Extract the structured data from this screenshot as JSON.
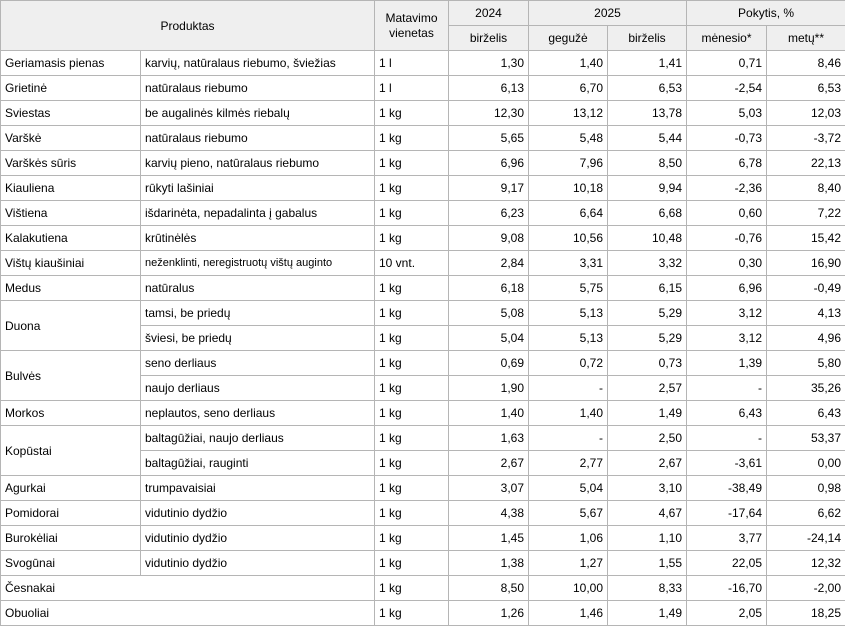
{
  "header": {
    "product": "Produktas",
    "unit": "Matavimo vienetas",
    "year_2024": "2024",
    "year_2025": "2025",
    "change": "Pokytis, %",
    "june_2024": "birželis",
    "may_2025": "gegužė",
    "june_2025": "birželis",
    "month_change": "mėnesio*",
    "year_change": "metų**"
  },
  "rows": [
    {
      "name": "Geriamasis pienas",
      "desc": "karvių, natūralaus riebumo, šviežias",
      "unit": "1 l",
      "p2024": "1,30",
      "may": "1,40",
      "jun": "1,41",
      "m": "0,71",
      "y": "8,46"
    },
    {
      "name": "Grietinė",
      "desc": "natūralaus riebumo",
      "unit": "1 l",
      "p2024": "6,13",
      "may": "6,70",
      "jun": "6,53",
      "m": "-2,54",
      "y": "6,53"
    },
    {
      "name": "Sviestas",
      "desc": "be augalinės kilmės riebalų",
      "unit": "1 kg",
      "p2024": "12,30",
      "may": "13,12",
      "jun": "13,78",
      "m": "5,03",
      "y": "12,03"
    },
    {
      "name": "Varškė",
      "desc": "natūralaus riebumo",
      "unit": "1 kg",
      "p2024": "5,65",
      "may": "5,48",
      "jun": "5,44",
      "m": "-0,73",
      "y": "-3,72"
    },
    {
      "name": "Varškės sūris",
      "desc": "karvių pieno, natūralaus riebumo",
      "unit": "1 kg",
      "p2024": "6,96",
      "may": "7,96",
      "jun": "8,50",
      "m": "6,78",
      "y": "22,13"
    },
    {
      "name": "Kiauliena",
      "desc": "rūkyti lašiniai",
      "unit": "1 kg",
      "p2024": "9,17",
      "may": "10,18",
      "jun": "9,94",
      "m": "-2,36",
      "y": "8,40"
    },
    {
      "name": "Vištiena",
      "desc": "išdarinėta, nepadalinta į gabalus",
      "unit": "1 kg",
      "p2024": "6,23",
      "may": "6,64",
      "jun": "6,68",
      "m": "0,60",
      "y": "7,22"
    },
    {
      "name": "Kalakutiena",
      "desc": "krūtinėlės",
      "unit": "1 kg",
      "p2024": "9,08",
      "may": "10,56",
      "jun": "10,48",
      "m": "-0,76",
      "y": "15,42"
    },
    {
      "name": "Vištų kiaušiniai",
      "desc": "neženklinti, neregistruotų vištų auginto",
      "unit": "10 vnt.",
      "p2024": "2,84",
      "may": "3,31",
      "jun": "3,32",
      "m": "0,30",
      "y": "16,90"
    },
    {
      "name": "Medus",
      "desc": "natūralus",
      "unit": "1 kg",
      "p2024": "6,18",
      "may": "5,75",
      "jun": "6,15",
      "m": "6,96",
      "y": "-0,49"
    },
    {
      "name": "Duona",
      "desc": "tamsi, be priedų",
      "unit": "1 kg",
      "p2024": "5,08",
      "may": "5,13",
      "jun": "5,29",
      "m": "3,12",
      "y": "4,13"
    },
    {
      "name": "",
      "desc": "šviesi, be priedų",
      "unit": "1 kg",
      "p2024": "5,04",
      "may": "5,13",
      "jun": "5,29",
      "m": "3,12",
      "y": "4,96"
    },
    {
      "name": "Bulvės",
      "desc": "seno derliaus",
      "unit": "1 kg",
      "p2024": "0,69",
      "may": "0,72",
      "jun": "0,73",
      "m": "1,39",
      "y": "5,80"
    },
    {
      "name": "",
      "desc": "naujo derliaus",
      "unit": "1 kg",
      "p2024": "1,90",
      "may": "-",
      "jun": "2,57",
      "m": "-",
      "y": "35,26"
    },
    {
      "name": "Morkos",
      "desc": "neplautos, seno derliaus",
      "unit": "1 kg",
      "p2024": "1,40",
      "may": "1,40",
      "jun": "1,49",
      "m": "6,43",
      "y": "6,43"
    },
    {
      "name": "Kopūstai",
      "desc": "baltagūžiai, naujo derliaus",
      "unit": "1 kg",
      "p2024": "1,63",
      "may": "-",
      "jun": "2,50",
      "m": "-",
      "y": "53,37"
    },
    {
      "name": "",
      "desc": "baltagūžiai, rauginti",
      "unit": "1 kg",
      "p2024": "2,67",
      "may": "2,77",
      "jun": "2,67",
      "m": "-3,61",
      "y": "0,00"
    },
    {
      "name": "Agurkai",
      "desc": "trumpavaisiai",
      "unit": "1 kg",
      "p2024": "3,07",
      "may": "5,04",
      "jun": "3,10",
      "m": "-38,49",
      "y": "0,98"
    },
    {
      "name": "Pomidorai",
      "desc": "vidutinio dydžio",
      "unit": "1 kg",
      "p2024": "4,38",
      "may": "5,67",
      "jun": "4,67",
      "m": "-17,64",
      "y": "6,62"
    },
    {
      "name": "Burokėliai",
      "desc": "vidutinio dydžio",
      "unit": "1 kg",
      "p2024": "1,45",
      "may": "1,06",
      "jun": "1,10",
      "m": "3,77",
      "y": "-24,14"
    },
    {
      "name": "Svogūnai",
      "desc": "vidutinio dydžio",
      "unit": "1 kg",
      "p2024": "1,38",
      "may": "1,27",
      "jun": "1,55",
      "m": "22,05",
      "y": "12,32"
    },
    {
      "name": "Česnakai",
      "desc": "",
      "unit": "1 kg",
      "p2024": "8,50",
      "may": "10,00",
      "jun": "8,33",
      "m": "-16,70",
      "y": "-2,00"
    },
    {
      "name": "Obuoliai",
      "desc": "",
      "unit": "1 kg",
      "p2024": "1,26",
      "may": "1,46",
      "jun": "1,49",
      "m": "2,05",
      "y": "18,25"
    }
  ]
}
